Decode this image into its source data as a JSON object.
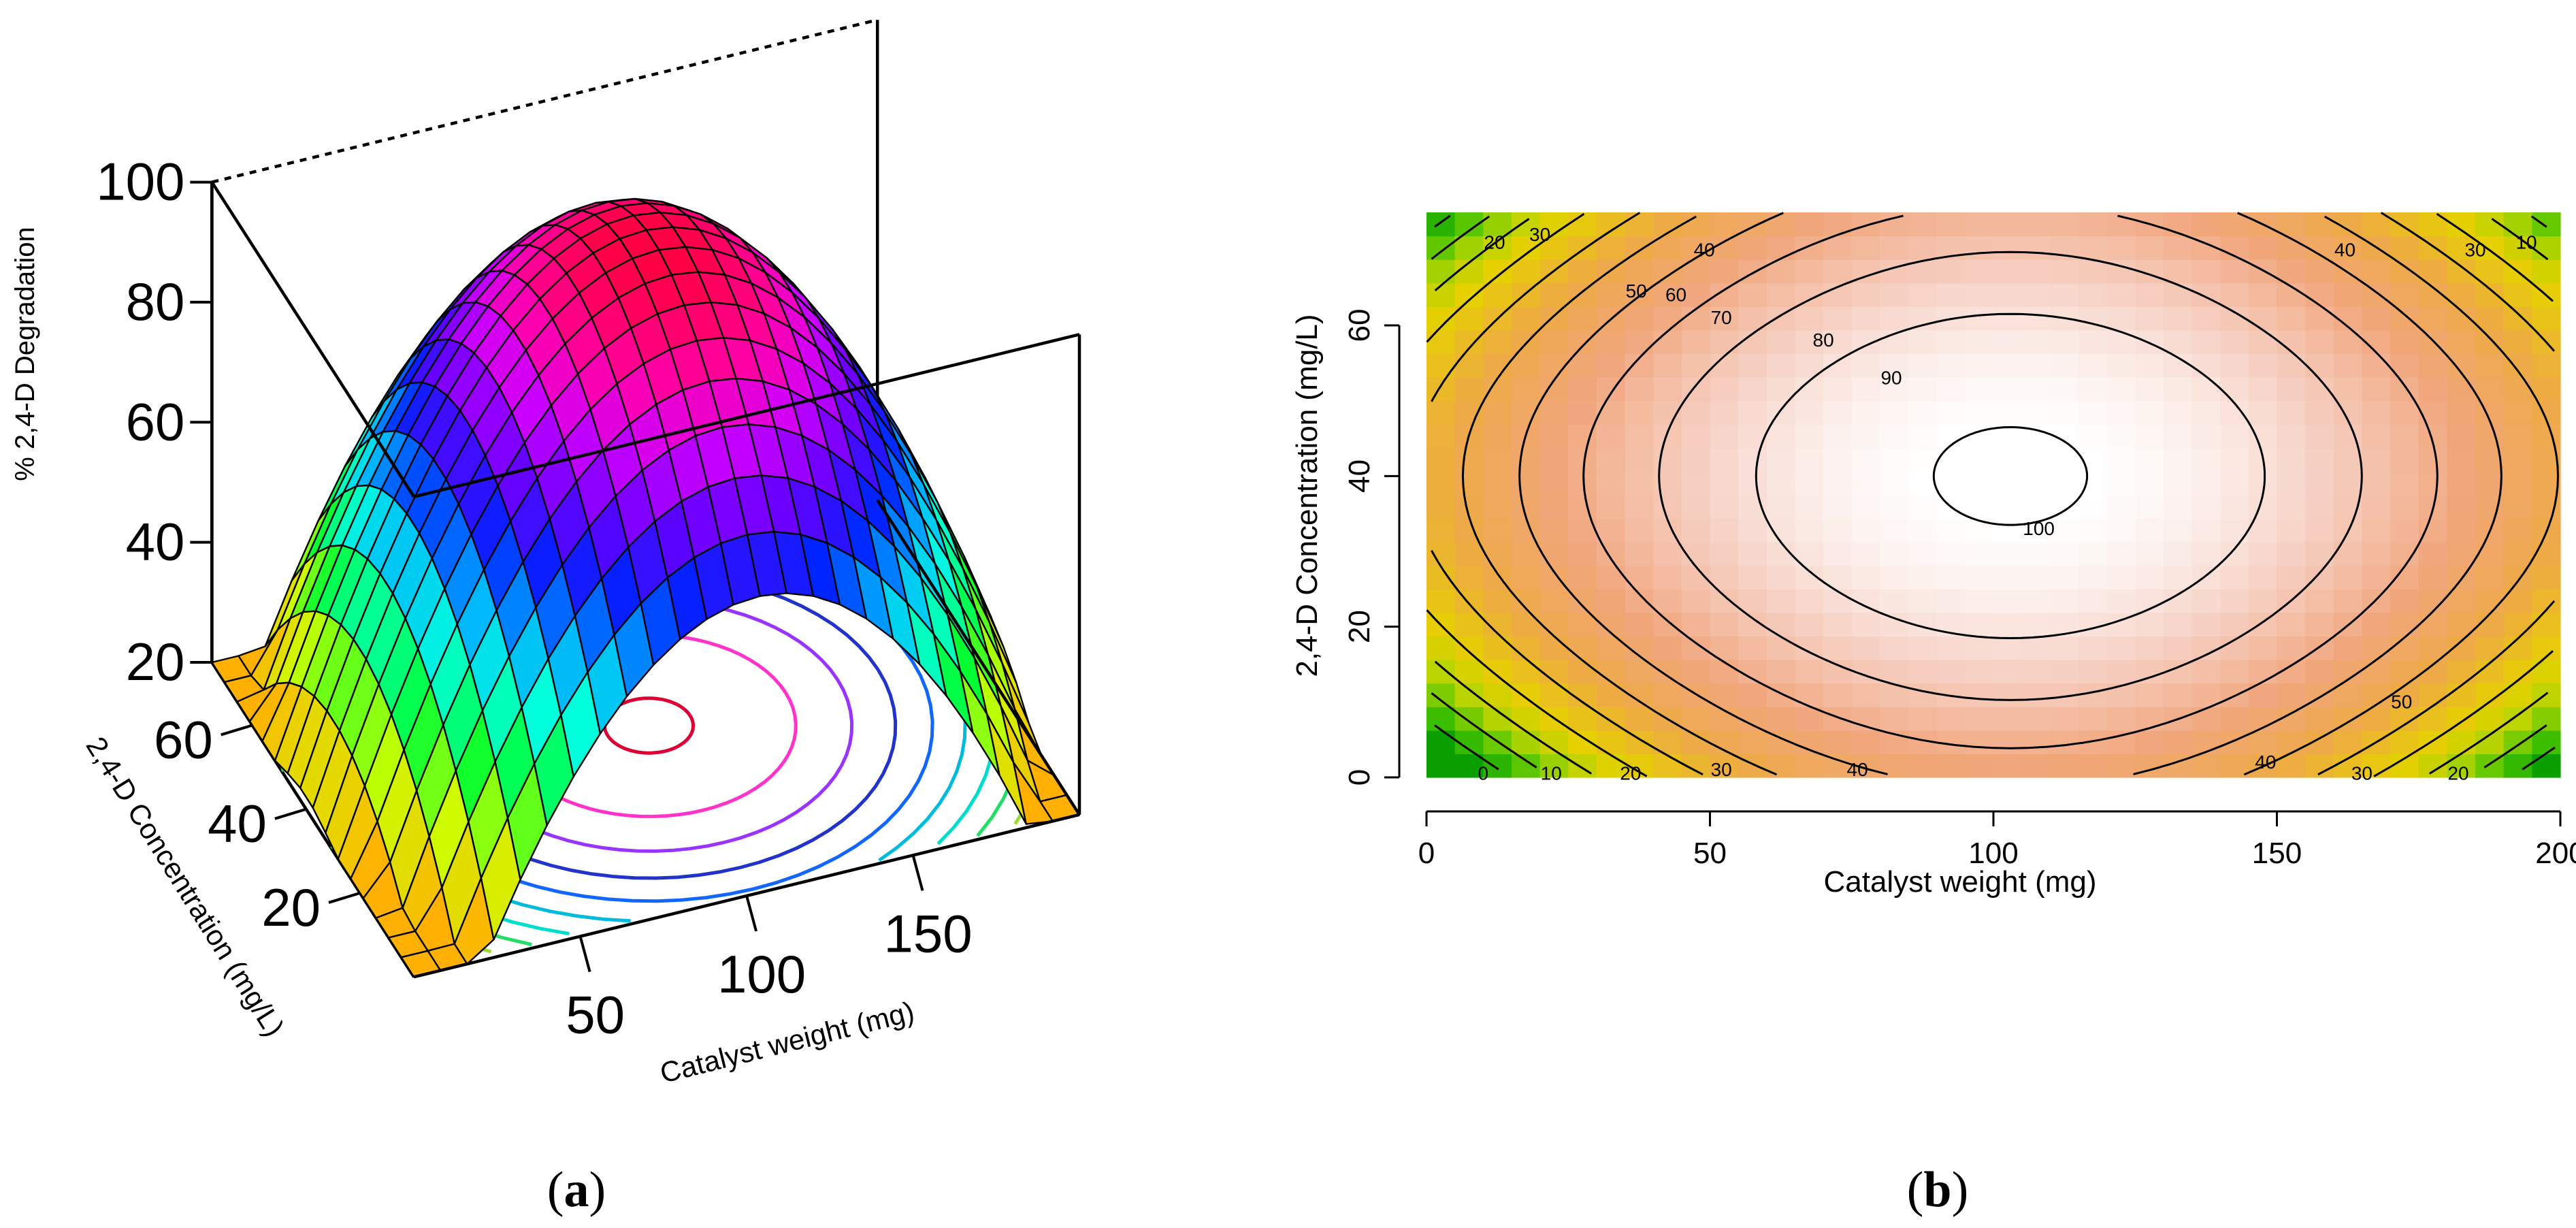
{
  "chart_data": [
    {
      "type": "surface",
      "panel_label": "a",
      "panel_label_open": "(",
      "panel_label_close": ")",
      "zlabel": "% 2,4-D  Degradation",
      "xlabel": "Catalyst weight (mg)",
      "ylabel": "2,4-D Concentration (mg/L)",
      "z_ticks": [
        "100",
        "80",
        "60",
        "40",
        "20"
      ],
      "x_ticks": [
        "50",
        "100",
        "150"
      ],
      "y_ticks": [
        "60",
        "40",
        "20"
      ],
      "xlim": [
        0,
        200
      ],
      "ylim": [
        0,
        75
      ],
      "zlim": [
        20,
        100
      ],
      "model": {
        "optimum_x": 103,
        "optimum_y": 40,
        "max_value": 101,
        "x_scale": 105,
        "y_scale": 45
      },
      "floor_contour_levels": [
        100,
        90,
        80,
        70,
        60,
        50,
        40,
        30,
        20
      ],
      "colors": {
        "peak": "#ff0066",
        "high": "#ff00cc",
        "mid_high": "#7700ff",
        "mid": "#0033ff",
        "mid_low": "#00aaff",
        "low_cyan": "#00ffee",
        "low": "#00ff44",
        "lowest": "#ffdd00"
      }
    },
    {
      "type": "heatmap",
      "panel_label": "b",
      "panel_label_open": "(",
      "panel_label_close": ")",
      "xlabel": "Catalyst weight (mg)",
      "ylabel": "2,4-D Concentration (mg/L)",
      "x_ticks": [
        "0",
        "50",
        "100",
        "150",
        "200"
      ],
      "y_ticks": [
        "0",
        "20",
        "40",
        "60"
      ],
      "xlim": [
        0,
        200
      ],
      "ylim": [
        0,
        75
      ],
      "contour_levels": [
        100,
        90,
        80,
        70,
        60,
        50,
        40,
        30,
        20,
        10,
        0
      ],
      "contour_labels": [
        {
          "text": "100",
          "x": 108,
          "y": 33
        },
        {
          "text": "90",
          "x": 82,
          "y": 53
        },
        {
          "text": "80",
          "x": 70,
          "y": 58
        },
        {
          "text": "70",
          "x": 52,
          "y": 61
        },
        {
          "text": "60",
          "x": 44,
          "y": 64
        },
        {
          "text": "50",
          "x": 37,
          "y": 64.5
        },
        {
          "text": "40",
          "x": 49,
          "y": 70
        },
        {
          "text": "30",
          "x": 20,
          "y": 72
        },
        {
          "text": "20",
          "x": 12,
          "y": 71
        },
        {
          "text": "40",
          "x": 162,
          "y": 70
        },
        {
          "text": "30",
          "x": 185,
          "y": 70
        },
        {
          "text": "10",
          "x": 194,
          "y": 71
        },
        {
          "text": "0",
          "x": 10,
          "y": 0.5
        },
        {
          "text": "10",
          "x": 22,
          "y": 0.5
        },
        {
          "text": "20",
          "x": 36,
          "y": 0.5
        },
        {
          "text": "30",
          "x": 52,
          "y": 1
        },
        {
          "text": "40",
          "x": 76,
          "y": 1
        },
        {
          "text": "40",
          "x": 148,
          "y": 2
        },
        {
          "text": "50",
          "x": 172,
          "y": 10
        },
        {
          "text": "30",
          "x": 165,
          "y": 0.5
        },
        {
          "text": "20",
          "x": 182,
          "y": 0.5
        }
      ],
      "colors": {
        "high": "#ffffff",
        "mid": "#f0a070",
        "low": "#e8d800",
        "lowest": "#1ab800"
      }
    }
  ]
}
